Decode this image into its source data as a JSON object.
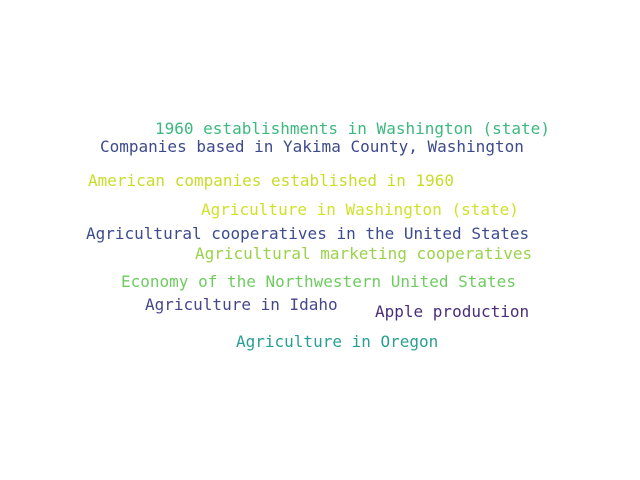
{
  "word_cloud": {
    "words": [
      {
        "text": "1960 establishments in Washington (state)",
        "color": "#3db87e"
      },
      {
        "text": "Companies based in Yakima County, Washington",
        "color": "#3d4a8c"
      },
      {
        "text": "American companies established in 1960",
        "color": "#c8dc2a"
      },
      {
        "text": "Agriculture in Washington (state)",
        "color": "#cfe12b"
      },
      {
        "text": "Agricultural cooperatives in the United States",
        "color": "#3e4b8d"
      },
      {
        "text": "Agricultural marketing cooperatives",
        "color": "#9ad24a"
      },
      {
        "text": "Economy of the Northwestern United States",
        "color": "#6fcb60"
      },
      {
        "text": "Agriculture in Idaho",
        "color": "#46478a"
      },
      {
        "text": "Apple production",
        "color": "#4a2d78"
      },
      {
        "text": "Agriculture in Oregon",
        "color": "#2a9e93"
      }
    ]
  }
}
